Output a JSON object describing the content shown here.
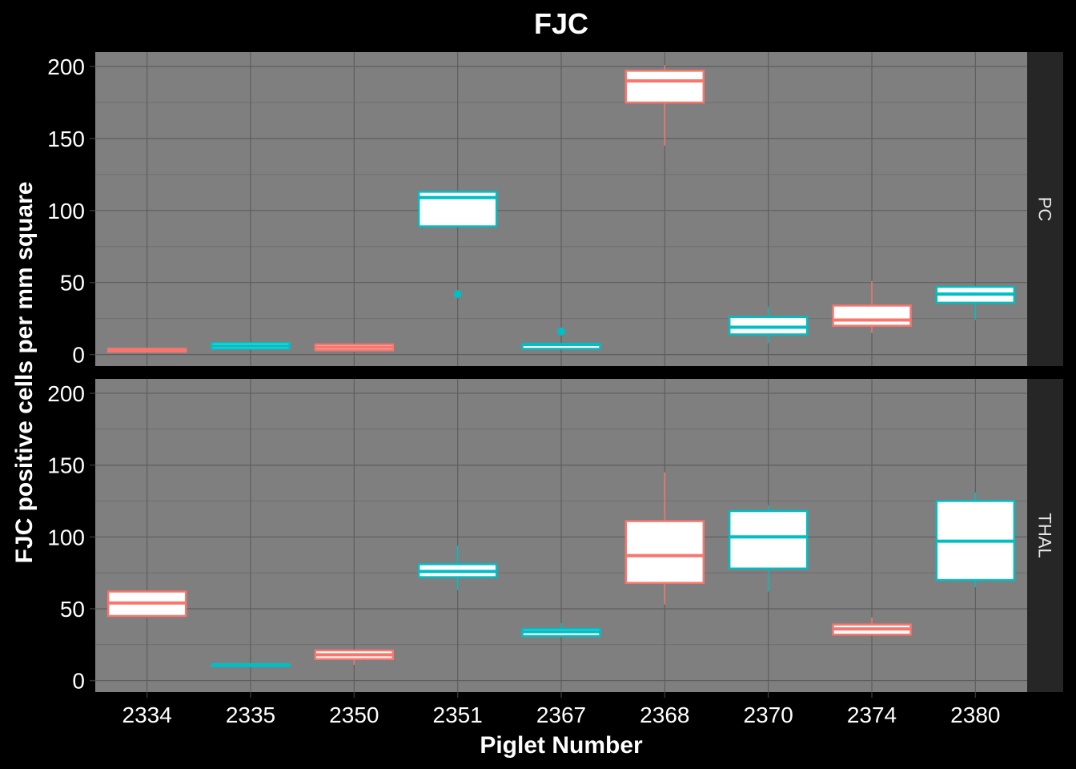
{
  "chart_data": {
    "type": "box",
    "title": "FJC",
    "xlabel": "Piglet Number",
    "ylabel": "FJC positive cells per mm square",
    "categories": [
      "2334",
      "2335",
      "2350",
      "2351",
      "2367",
      "2368",
      "2370",
      "2374",
      "2380"
    ],
    "ylim": [
      -8,
      210
    ],
    "yticks": [
      0,
      50,
      100,
      150,
      200
    ],
    "grid": true,
    "colors": {
      "group_a": "#F8766D",
      "group_b": "#00BFC4",
      "panel_background": "#7F7F7F",
      "strip_background": "#262626",
      "box_fill": "#FFFFFF"
    },
    "panels": [
      {
        "label": "PC",
        "boxes": [
          {
            "category": "2334",
            "group": "group_a",
            "min": 2,
            "q1": 2,
            "median": 3,
            "q3": 4,
            "max": 4,
            "outliers": []
          },
          {
            "category": "2335",
            "group": "group_b",
            "min": 4,
            "q1": 4,
            "median": 6,
            "q3": 8,
            "max": 8,
            "outliers": []
          },
          {
            "category": "2350",
            "group": "group_a",
            "min": 2,
            "q1": 3,
            "median": 5,
            "q3": 7,
            "max": 7,
            "outliers": []
          },
          {
            "category": "2351",
            "group": "group_b",
            "min": 89,
            "q1": 89,
            "median": 109,
            "q3": 113,
            "max": 113,
            "outliers": [
              42
            ]
          },
          {
            "category": "2367",
            "group": "group_b",
            "min": 4,
            "q1": 4,
            "median": 7,
            "q3": 7,
            "max": 7,
            "outliers": [
              16
            ]
          },
          {
            "category": "2368",
            "group": "group_a",
            "min": 145,
            "q1": 175,
            "median": 190,
            "q3": 197,
            "max": 201,
            "outliers": []
          },
          {
            "category": "2370",
            "group": "group_b",
            "min": 8,
            "q1": 14,
            "median": 19,
            "q3": 26,
            "max": 33,
            "outliers": []
          },
          {
            "category": "2374",
            "group": "group_a",
            "min": 15,
            "q1": 20,
            "median": 24,
            "q3": 34,
            "max": 51,
            "outliers": []
          },
          {
            "category": "2380",
            "group": "group_b",
            "min": 24,
            "q1": 36,
            "median": 42,
            "q3": 47,
            "max": 47,
            "outliers": []
          }
        ]
      },
      {
        "label": "THAL",
        "boxes": [
          {
            "category": "2334",
            "group": "group_a",
            "min": 44,
            "q1": 45,
            "median": 54,
            "q3": 62,
            "max": 62,
            "outliers": []
          },
          {
            "category": "2335",
            "group": "group_b",
            "min": 10,
            "q1": 10,
            "median": 11,
            "q3": 11,
            "max": 11,
            "outliers": []
          },
          {
            "category": "2350",
            "group": "group_a",
            "min": 11,
            "q1": 15,
            "median": 18,
            "q3": 21,
            "max": 21,
            "outliers": []
          },
          {
            "category": "2351",
            "group": "group_b",
            "min": 63,
            "q1": 72,
            "median": 76,
            "q3": 81,
            "max": 94,
            "outliers": []
          },
          {
            "category": "2367",
            "group": "group_b",
            "min": 31,
            "q1": 31,
            "median": 34,
            "q3": 36,
            "max": 40,
            "outliers": []
          },
          {
            "category": "2368",
            "group": "group_a",
            "min": 53,
            "q1": 68,
            "median": 87,
            "q3": 111,
            "max": 145,
            "outliers": []
          },
          {
            "category": "2370",
            "group": "group_b",
            "min": 62,
            "q1": 78,
            "median": 100,
            "q3": 118,
            "max": 122,
            "outliers": []
          },
          {
            "category": "2374",
            "group": "group_a",
            "min": 32,
            "q1": 32,
            "median": 36,
            "q3": 39,
            "max": 44,
            "outliers": []
          },
          {
            "category": "2380",
            "group": "group_b",
            "min": 65,
            "q1": 70,
            "median": 97,
            "q3": 125,
            "max": 131,
            "outliers": []
          }
        ]
      }
    ]
  }
}
